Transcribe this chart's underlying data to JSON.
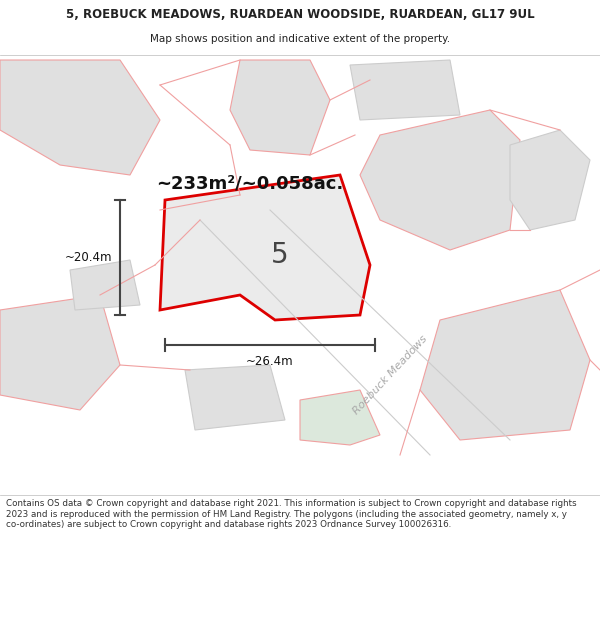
{
  "title": "5, ROEBUCK MEADOWS, RUARDEAN WOODSIDE, RUARDEAN, GL17 9UL",
  "subtitle": "Map shows position and indicative extent of the property.",
  "area_text": "~233m²/~0.058ac.",
  "dim_width": "~26.4m",
  "dim_height": "~20.4m",
  "label_number": "5",
  "footer": "Contains OS data © Crown copyright and database right 2021. This information is subject to Crown copyright and database rights 2023 and is reproduced with the permission of HM Land Registry. The polygons (including the associated geometry, namely x, y co-ordinates) are subject to Crown copyright and database rights 2023 Ordnance Survey 100026316.",
  "highlight_color": "#dd0000",
  "light_red": "#f0a0a0",
  "gray_outline": "#cccccc",
  "road_label": "Roebuck Meadows",
  "road_label_color": "#aaaaaa",
  "title_color": "#222222",
  "footer_color": "#333333",
  "gray_fill": "#e0e0e0",
  "white_fill": "#ffffff",
  "map_parcel_fill": "#e8e8e8"
}
